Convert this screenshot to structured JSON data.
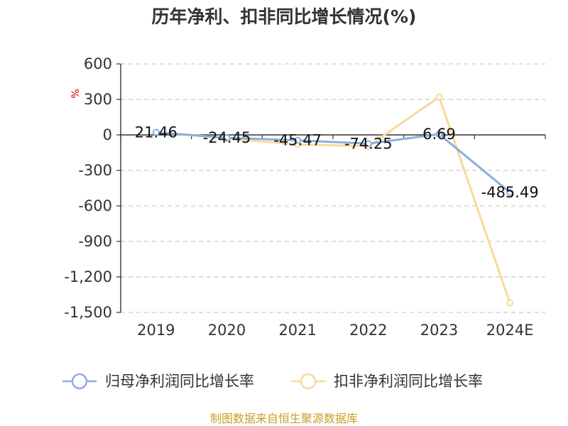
{
  "chart_data": {
    "type": "line",
    "title": "历年净利、扣非同比增长情况(%)",
    "unit_label": "%",
    "categories": [
      "2019",
      "2020",
      "2021",
      "2022",
      "2023",
      "2024E"
    ],
    "ylim": [
      -1500,
      600
    ],
    "yticks": [
      600,
      300,
      0,
      -300,
      -600,
      -900,
      -1200,
      -1500
    ],
    "ytick_labels": [
      "600",
      "300",
      "0",
      "-300",
      "-600",
      "-900",
      "-1,200",
      "-1,500"
    ],
    "grid": true,
    "legend_position": "bottom",
    "series": [
      {
        "name": "归母净利润同比增长率",
        "color": "#8eaedb",
        "values": [
          21.46,
          -24.45,
          -45.47,
          -74.25,
          6.69,
          -485.49
        ],
        "labels": [
          "21.46",
          "-24.45",
          "-45.47",
          "-74.25",
          "6.69",
          "-485.49"
        ]
      },
      {
        "name": "扣非净利润同比增长率",
        "color": "#f9d99a",
        "values": [
          22,
          -30,
          -80,
          -95,
          320,
          -1420
        ],
        "labels": []
      }
    ]
  },
  "source_note": "制图数据来自恒生聚源数据库"
}
